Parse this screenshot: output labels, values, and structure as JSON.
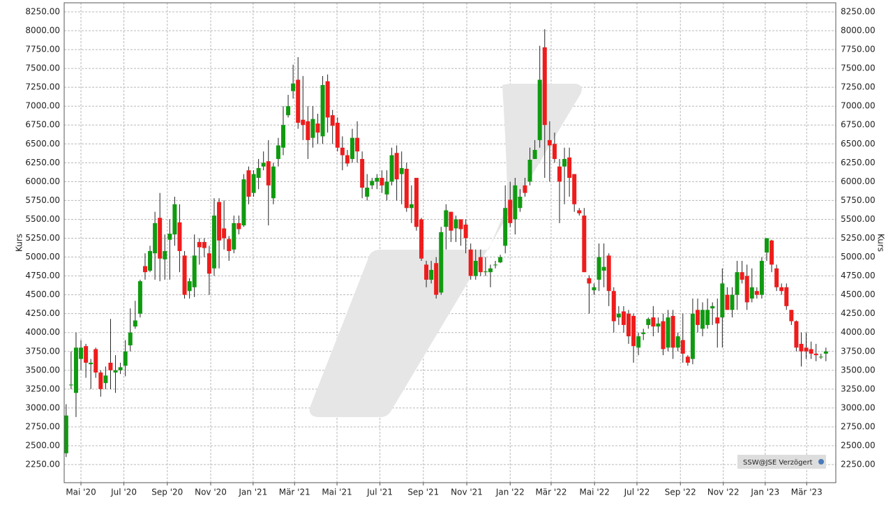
{
  "chart_data": {
    "type": "candlestick",
    "y_label": "Kurs",
    "source_label": "SSW@JSE Verzögert",
    "up_color": "#109a10",
    "down_color": "#ee1c1c",
    "grid": true,
    "xlim": [
      -0.4,
      156
    ],
    "ylim": [
      2010,
      8370
    ],
    "xticks": [
      {
        "value": 3.0,
        "label": "Mai '20"
      },
      {
        "value": 11.7,
        "label": "Jul '20"
      },
      {
        "value": 20.5,
        "label": "Sep '20"
      },
      {
        "value": 29.3,
        "label": "Nov '20"
      },
      {
        "value": 37.9,
        "label": "Jan '21"
      },
      {
        "value": 46.3,
        "label": "Mär '21"
      },
      {
        "value": 54.9,
        "label": "Mai '21"
      },
      {
        "value": 63.6,
        "label": "Jul '21"
      },
      {
        "value": 72.4,
        "label": "Sep '21"
      },
      {
        "value": 81.2,
        "label": "Nov '21"
      },
      {
        "value": 90.0,
        "label": "Jan '22"
      },
      {
        "value": 98.3,
        "label": "Mär '22"
      },
      {
        "value": 107.1,
        "label": "Mai '22"
      },
      {
        "value": 115.7,
        "label": "Jul '22"
      },
      {
        "value": 124.5,
        "label": "Sep '22"
      },
      {
        "value": 133.2,
        "label": "Nov '22"
      },
      {
        "value": 141.7,
        "label": "Jan '23"
      },
      {
        "value": 150.1,
        "label": "Mär '23"
      }
    ],
    "yticks": [
      {
        "value": 2250,
        "label": "2250.00"
      },
      {
        "value": 2500,
        "label": "2500.00"
      },
      {
        "value": 2750,
        "label": "2750.00"
      },
      {
        "value": 3000,
        "label": "3000.00"
      },
      {
        "value": 3250,
        "label": "3250.00"
      },
      {
        "value": 3500,
        "label": "3500.00"
      },
      {
        "value": 3750,
        "label": "3750.00"
      },
      {
        "value": 4000,
        "label": "4000.00"
      },
      {
        "value": 4250,
        "label": "4250.00"
      },
      {
        "value": 4500,
        "label": "4500.00"
      },
      {
        "value": 4750,
        "label": "4750.00"
      },
      {
        "value": 5000,
        "label": "5000.00"
      },
      {
        "value": 5250,
        "label": "5250.00"
      },
      {
        "value": 5500,
        "label": "5500.00"
      },
      {
        "value": 5750,
        "label": "5750.00"
      },
      {
        "value": 6000,
        "label": "6000.00"
      },
      {
        "value": 6250,
        "label": "6250.00"
      },
      {
        "value": 6500,
        "label": "6500.00"
      },
      {
        "value": 6750,
        "label": "6750.00"
      },
      {
        "value": 7000,
        "label": "7000.00"
      },
      {
        "value": 7250,
        "label": "7250.00"
      },
      {
        "value": 7500,
        "label": "7500.00"
      },
      {
        "value": 7750,
        "label": "7750.00"
      },
      {
        "value": 8000,
        "label": "8000.00"
      },
      {
        "value": 8250,
        "label": "8250.00"
      }
    ],
    "open": [
      2400,
      3300,
      3200,
      3650,
      3820,
      3580,
      3780,
      3470,
      3330,
      3600,
      3470,
      3500,
      3560,
      3830,
      4080,
      4250,
      4880,
      4820,
      5050,
      5520,
      4970,
      5230,
      5300,
      5460,
      5020,
      4550,
      4600,
      5200,
      5200,
      5050,
      4850,
      5730,
      5380,
      5240,
      5100,
      5450,
      5420,
      6150,
      5850,
      6050,
      6200,
      6270,
      5780,
      6300,
      6450,
      6880,
      7200,
      7350,
      6820,
      6800,
      6580,
      6770,
      6600,
      7330,
      6880,
      6780,
      6450,
      6350,
      6300,
      6580,
      6300,
      5800,
      5950,
      6000,
      6050,
      5830,
      6000,
      6380,
      6100,
      6170,
      5650,
      6050,
      5500,
      4900,
      4700,
      4920,
      4530,
      5400,
      5600,
      5380,
      5500,
      5430,
      5100,
      4750,
      5000,
      4800,
      4800,
      4900,
      4930,
      5150,
      5760,
      5500,
      5650,
      5950,
      6000,
      6300,
      6550,
      7780,
      6550,
      6500,
      6200,
      6200,
      6320,
      6100,
      5620,
      5550,
      4720,
      4560,
      4700,
      4820,
      5020,
      4550,
      4200,
      4280,
      4250,
      4220,
      3800,
      3980,
      4100,
      4200,
      4080,
      4150,
      3800,
      4220,
      3800,
      3900,
      3680,
      3650,
      4300,
      4050,
      4100,
      4320,
      4200,
      4200,
      4500,
      4300,
      4500,
      4800,
      4750,
      4450,
      4550,
      4500,
      5060,
      5220,
      4850,
      4600,
      4600,
      4300,
      4150,
      3850,
      3800,
      3780,
      3720,
      3680,
      3720
    ],
    "high": [
      3050,
      3750,
      4000,
      3900,
      3850,
      3650,
      3800,
      3500,
      3550,
      4180,
      3700,
      3600,
      3900,
      4320,
      4420,
      4700,
      5050,
      5150,
      5600,
      5850,
      5300,
      5500,
      5800,
      5700,
      5080,
      4720,
      5300,
      5250,
      5250,
      5150,
      5780,
      5780,
      5750,
      5280,
      5550,
      5550,
      6100,
      6200,
      6150,
      6300,
      6400,
      6550,
      6250,
      6580,
      7000,
      7150,
      7550,
      7650,
      7400,
      7000,
      7000,
      6900,
      7400,
      7420,
      6950,
      6850,
      6600,
      6420,
      6700,
      6800,
      6400,
      6100,
      6050,
      6100,
      6150,
      6150,
      6450,
      6480,
      6400,
      6250,
      5950,
      6000,
      5520,
      4950,
      4950,
      5000,
      5400,
      5700,
      5600,
      5550,
      5500,
      5500,
      5180,
      5100,
      5100,
      5000,
      4900,
      4950,
      5030,
      5950,
      6000,
      6050,
      5900,
      6050,
      6450,
      6550,
      7800,
      8020,
      6800,
      6650,
      6300,
      6450,
      6450,
      6100,
      5650,
      5650,
      4760,
      4650,
      5180,
      5180,
      5050,
      4600,
      4350,
      4350,
      4300,
      4250,
      4000,
      4050,
      4200,
      4350,
      4200,
      4250,
      4300,
      4300,
      4000,
      4250,
      3700,
      4450,
      4450,
      4400,
      4450,
      4400,
      4450,
      4850,
      4600,
      4600,
      4950,
      4950,
      4900,
      4850,
      4600,
      5000,
      5250,
      5230,
      4900,
      4650,
      4650,
      4300,
      4160,
      4000,
      4000,
      3880,
      3850,
      3720,
      3800
    ],
    "low": [
      2350,
      3250,
      2880,
      3500,
      3400,
      3250,
      3400,
      3150,
      3250,
      3250,
      3200,
      3450,
      3420,
      3750,
      4050,
      4200,
      4700,
      4800,
      4700,
      4680,
      4700,
      4700,
      5150,
      4800,
      4450,
      4450,
      4470,
      4900,
      5000,
      4500,
      4750,
      4850,
      5100,
      4950,
      5050,
      5300,
      5400,
      5700,
      5800,
      5900,
      6150,
      5420,
      5700,
      6200,
      6350,
      6850,
      7100,
      6700,
      6550,
      6300,
      6450,
      6500,
      6500,
      6650,
      6500,
      6400,
      6150,
      6200,
      6250,
      6250,
      5780,
      5750,
      5900,
      5900,
      5850,
      5750,
      5950,
      5750,
      5700,
      5600,
      5450,
      5350,
      4950,
      4600,
      4650,
      4450,
      4500,
      5100,
      5200,
      5200,
      5150,
      5050,
      4700,
      4700,
      4750,
      4750,
      4600,
      4850,
      4920,
      5050,
      5400,
      5300,
      5600,
      5800,
      5950,
      6300,
      6450,
      6050,
      6000,
      6250,
      5450,
      5700,
      5800,
      5600,
      5550,
      4800,
      4250,
      4500,
      4550,
      4600,
      4350,
      4000,
      4100,
      4000,
      3850,
      3600,
      3700,
      3900,
      4050,
      3950,
      4000,
      3700,
      3750,
      3650,
      3750,
      3600,
      3560,
      3580,
      4000,
      3950,
      4050,
      4100,
      3800,
      3800,
      4300,
      4200,
      4300,
      4650,
      4300,
      4400,
      4450,
      4450,
      4950,
      4800,
      4550,
      4500,
      4300,
      4100,
      3750,
      3550,
      3650,
      3650,
      3620,
      3650,
      3620
    ],
    "close": [
      2900,
      3310,
      3800,
      3800,
      3600,
      3600,
      3470,
      3250,
      3430,
      3500,
      3500,
      3540,
      3750,
      4000,
      4160,
      4680,
      4800,
      5080,
      5450,
      4980,
      5080,
      5310,
      5700,
      5080,
      4500,
      4680,
      5020,
      5130,
      5120,
      4780,
      5550,
      5220,
      5250,
      5080,
      5450,
      5370,
      6030,
      5800,
      6100,
      6180,
      6250,
      5950,
      6200,
      6480,
      6750,
      7000,
      7300,
      6780,
      6750,
      6550,
      6830,
      6650,
      7280,
      6850,
      6740,
      6450,
      6350,
      6240,
      6580,
      6400,
      5920,
      5920,
      6010,
      6050,
      5950,
      6000,
      6350,
      6030,
      6180,
      5650,
      5700,
      5400,
      4980,
      4700,
      4830,
      4500,
      5330,
      5620,
      5350,
      5500,
      5370,
      5250,
      4750,
      4950,
      4800,
      4810,
      4850,
      4900,
      5000,
      5650,
      5450,
      5950,
      5800,
      5850,
      6290,
      6420,
      7350,
      6750,
      6480,
      6300,
      6000,
      6300,
      6050,
      5700,
      5580,
      4800,
      4650,
      4600,
      5000,
      4870,
      4550,
      4150,
      4250,
      4100,
      3950,
      3820,
      3950,
      4000,
      4180,
      4080,
      4120,
      3780,
      4200,
      3800,
      3950,
      3720,
      3600,
      4250,
      4100,
      4300,
      4300,
      4350,
      4120,
      4650,
      4300,
      4500,
      4800,
      4700,
      4400,
      4600,
      4500,
      4950,
      5250,
      4900,
      4600,
      4550,
      4350,
      4150,
      3800,
      3750,
      3750,
      3720,
      3700,
      3680,
      3750
    ]
  }
}
